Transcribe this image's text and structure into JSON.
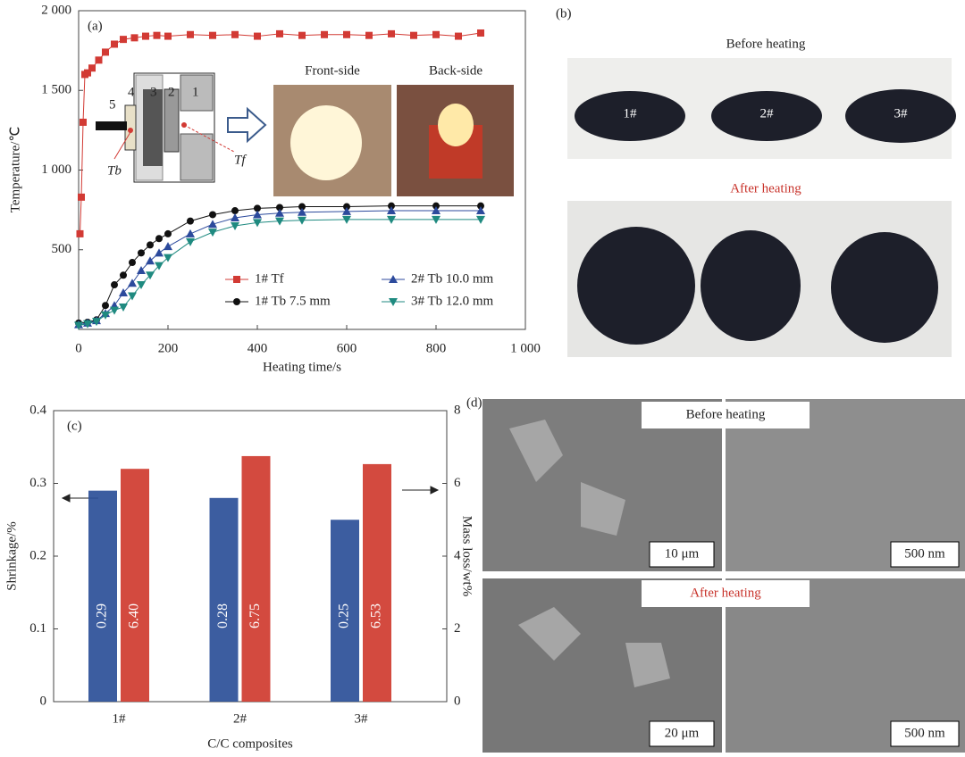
{
  "chart_data": [
    {
      "type": "line",
      "panel_label": "(a)",
      "xlabel": "Heating time/s",
      "ylabel": "Temperature/℃",
      "xlim": [
        0,
        1000
      ],
      "ylim": [
        0,
        2000
      ],
      "xticks": [
        0,
        200,
        400,
        600,
        800,
        {
          "value": 1000,
          "label": "1 000"
        }
      ],
      "yticks": [
        500,
        {
          "value": 1000,
          "label": "1 000"
        },
        {
          "value": 1500,
          "label": "1 500"
        },
        {
          "value": 2000,
          "label": "2 000"
        }
      ],
      "series": [
        {
          "name": "1# Tf",
          "color": "#d23a34",
          "marker": "square",
          "x": [
            3,
            6,
            10,
            14,
            20,
            30,
            45,
            60,
            80,
            100,
            125,
            150,
            175,
            200,
            250,
            300,
            350,
            400,
            450,
            500,
            550,
            600,
            650,
            700,
            750,
            800,
            850,
            900
          ],
          "values": [
            600,
            830,
            1300,
            1600,
            1610,
            1640,
            1690,
            1740,
            1790,
            1820,
            1830,
            1840,
            1845,
            1840,
            1850,
            1845,
            1850,
            1840,
            1855,
            1845,
            1850,
            1850,
            1845,
            1855,
            1845,
            1850,
            1840,
            1860
          ]
        },
        {
          "name": "1# Tb 7.5 mm",
          "color": "#111111",
          "marker": "circle",
          "x": [
            0,
            20,
            40,
            60,
            80,
            100,
            120,
            140,
            160,
            180,
            200,
            250,
            300,
            350,
            400,
            450,
            500,
            600,
            700,
            800,
            900
          ],
          "values": [
            40,
            45,
            60,
            150,
            280,
            340,
            420,
            480,
            530,
            570,
            600,
            680,
            720,
            745,
            760,
            765,
            770,
            770,
            775,
            775,
            775
          ]
        },
        {
          "name": "2# Tb 10.0 mm",
          "color": "#2c4a9c",
          "marker": "triangle-up",
          "x": [
            0,
            20,
            40,
            60,
            80,
            100,
            120,
            140,
            160,
            180,
            200,
            250,
            300,
            350,
            400,
            450,
            500,
            600,
            700,
            800,
            900
          ],
          "values": [
            30,
            40,
            55,
            100,
            150,
            230,
            290,
            370,
            430,
            480,
            520,
            600,
            660,
            700,
            720,
            730,
            735,
            740,
            745,
            745,
            745
          ]
        },
        {
          "name": "3# Tb 12.0 mm",
          "color": "#1f8a80",
          "marker": "triangle-down",
          "x": [
            0,
            20,
            40,
            60,
            80,
            100,
            120,
            140,
            160,
            180,
            200,
            250,
            300,
            350,
            400,
            450,
            500,
            600,
            700,
            800,
            900
          ],
          "values": [
            25,
            35,
            50,
            90,
            120,
            140,
            210,
            280,
            340,
            400,
            450,
            550,
            610,
            650,
            670,
            680,
            685,
            690,
            690,
            690,
            690
          ]
        }
      ],
      "inset_labels": [
        "5",
        "4",
        "3",
        "2",
        "1"
      ],
      "probe_labels": [
        "Tb",
        "Tf"
      ],
      "photo_labels": [
        "Front-side",
        "Back-side"
      ]
    },
    {
      "type": "bar",
      "panel_label": "(c)",
      "categories": [
        "1#",
        "2#",
        "3#"
      ],
      "xlabel": "C/C composites",
      "ylabel": "Shrinkage/%",
      "y2label": "Mass loss/wt%",
      "ylim": [
        0,
        0.4
      ],
      "yticks": [
        0,
        0.1,
        0.2,
        0.3,
        0.4
      ],
      "y2lim": [
        0,
        8
      ],
      "y2ticks": [
        0,
        2,
        4,
        6,
        8
      ],
      "series": [
        {
          "color": "#2b4f98",
          "values": [
            0.29,
            0.28,
            0.25
          ]
        },
        {
          "color": "#cf3b2f",
          "axis": "y2",
          "values": [
            6.4,
            6.75,
            6.53
          ],
          "value_labels": [
            "6.40",
            "6.75",
            "6.53"
          ]
        }
      ]
    }
  ],
  "photos": {
    "b": {
      "panel_label": "(b)",
      "before": "Before heating",
      "after": "After heating",
      "samples": [
        "1#",
        "2#",
        "3#"
      ]
    },
    "d": {
      "panel_label": "(d)",
      "before": "Before heating",
      "after": "After heating",
      "scale_bars": [
        "10 μm",
        "500 nm",
        "20 μm",
        "500 nm"
      ]
    }
  }
}
